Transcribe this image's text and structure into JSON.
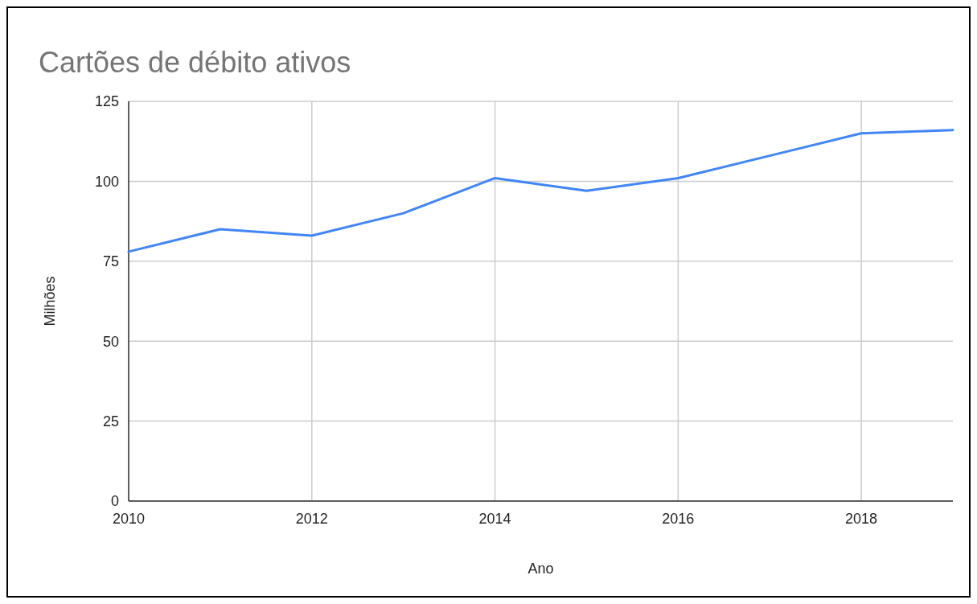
{
  "chart_data": {
    "type": "line",
    "title": "Cartões de débito ativos",
    "xlabel": "Ano",
    "ylabel": "Milhões",
    "x": [
      2010,
      2011,
      2012,
      2013,
      2014,
      2015,
      2016,
      2017,
      2018,
      2019
    ],
    "series": [
      {
        "color": "#4285f4",
        "values": [
          78,
          85,
          83,
          90,
          101,
          97,
          101,
          108,
          115,
          116
        ]
      }
    ],
    "xlim": [
      2010,
      2019
    ],
    "xticks": [
      2010,
      2012,
      2014,
      2016,
      2018
    ],
    "ylim": [
      0,
      125
    ],
    "yticks": [
      0,
      25,
      50,
      75,
      100,
      125
    ],
    "grid": true,
    "marker": "none",
    "line_style": "solid"
  }
}
